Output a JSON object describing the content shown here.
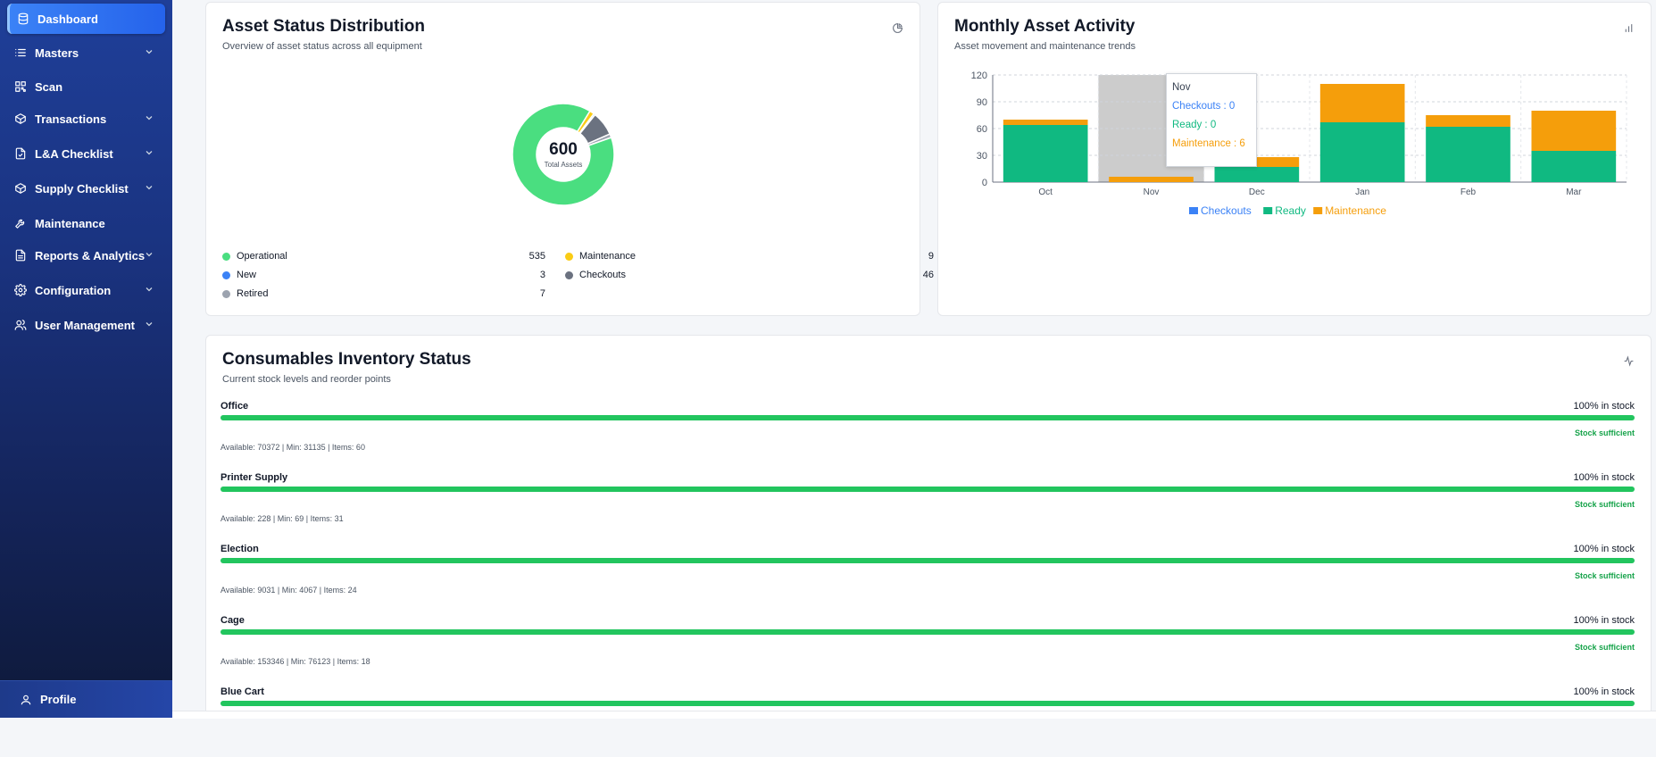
{
  "sidebar": {
    "items": [
      {
        "label": "Dashboard",
        "icon": "database-icon",
        "active": true,
        "chevron": false
      },
      {
        "label": "Masters",
        "icon": "list-icon",
        "chevron": true
      },
      {
        "label": "Scan",
        "icon": "qr-icon",
        "chevron": false
      },
      {
        "label": "Transactions",
        "icon": "box-icon",
        "chevron": true
      },
      {
        "label": "L&A Checklist",
        "icon": "file-check-icon",
        "chevron": true
      },
      {
        "label": "Supply Checklist",
        "icon": "box-icon",
        "chevron": true
      },
      {
        "label": "Maintenance",
        "icon": "wrench-icon",
        "chevron": false
      },
      {
        "label": "Reports & Analytics",
        "icon": "report-icon",
        "chevron": true
      },
      {
        "label": "Configuration",
        "icon": "gear-icon",
        "chevron": true
      },
      {
        "label": "User Management",
        "icon": "users-icon",
        "chevron": true
      }
    ],
    "profile_label": "Profile"
  },
  "asset_status": {
    "title": "Asset Status Distribution",
    "subtitle": "Overview of asset status across all equipment",
    "total_value": "600",
    "total_label": "Total Assets",
    "legend": [
      {
        "label": "Operational",
        "value": "535",
        "color": "#4ade80"
      },
      {
        "label": "Maintenance",
        "value": "9",
        "color": "#facc15"
      },
      {
        "label": "New",
        "value": "3",
        "color": "#3b82f6"
      },
      {
        "label": "Checkouts",
        "value": "46",
        "color": "#6b7280"
      },
      {
        "label": "Retired",
        "value": "7",
        "color": "#9ca3af"
      }
    ]
  },
  "monthly_activity": {
    "title": "Monthly Asset Activity",
    "subtitle": "Asset movement and maintenance trends",
    "tooltip": {
      "month": "Nov",
      "checkouts": "Checkouts : 0",
      "ready": "Ready : 0",
      "maintenance": "Maintenance : 6"
    }
  },
  "chart_data": {
    "type": "bar",
    "stacked": true,
    "categories": [
      "Oct",
      "Nov",
      "Dec",
      "Jan",
      "Feb",
      "Mar"
    ],
    "series": [
      {
        "name": "Checkouts",
        "color": "#3b82f6",
        "values": [
          0,
          0,
          0,
          0,
          0,
          0
        ]
      },
      {
        "name": "Ready",
        "color": "#10b981",
        "values": [
          64,
          0,
          17,
          67,
          62,
          35
        ]
      },
      {
        "name": "Maintenance",
        "color": "#f59e0b",
        "values": [
          6,
          6,
          11,
          43,
          13,
          45
        ]
      }
    ],
    "yticks": [
      0,
      30,
      60,
      90,
      120
    ],
    "ylim": [
      0,
      120
    ],
    "legend_position": "bottom",
    "grid": true
  },
  "consumables": {
    "title": "Consumables Inventory Status",
    "subtitle": "Current stock levels and reorder points",
    "items": [
      {
        "name": "Office",
        "pct_text": "100% in stock",
        "pct": 100,
        "status": "Stock sufficient",
        "info": "Available: 70372 | Min: 31135 | Items: 60"
      },
      {
        "name": "Printer Supply",
        "pct_text": "100% in stock",
        "pct": 100,
        "status": "Stock sufficient",
        "info": "Available: 228 | Min: 69 | Items: 31"
      },
      {
        "name": "Election",
        "pct_text": "100% in stock",
        "pct": 100,
        "status": "Stock sufficient",
        "info": "Available: 9031 | Min: 4067 | Items: 24"
      },
      {
        "name": "Cage",
        "pct_text": "100% in stock",
        "pct": 100,
        "status": "Stock sufficient",
        "info": "Available: 153346 | Min: 76123 | Items: 18"
      },
      {
        "name": "Blue Cart",
        "pct_text": "100% in stock",
        "pct": 100,
        "status": "",
        "info": ""
      }
    ]
  }
}
